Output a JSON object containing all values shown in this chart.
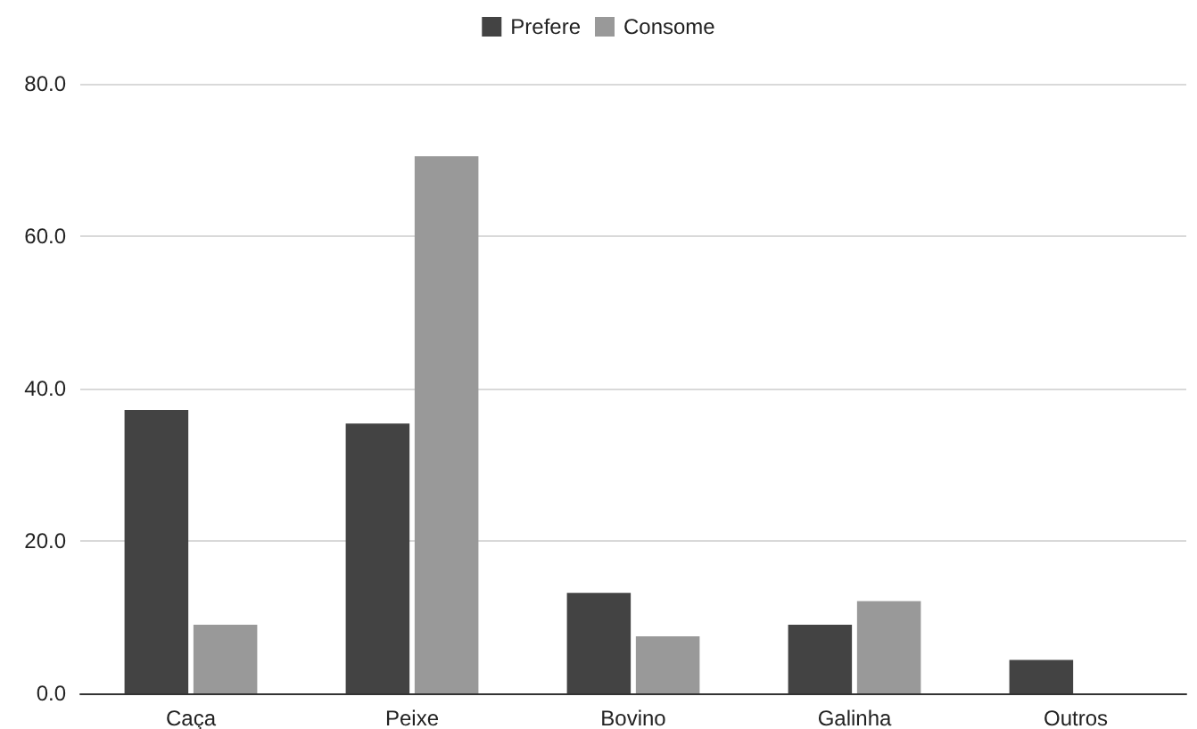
{
  "chart_data": {
    "type": "bar",
    "categories": [
      "Caça",
      "Peixe",
      "Bovino",
      "Galinha",
      "Outros"
    ],
    "series": [
      {
        "name": "Prefere",
        "color": "#434343",
        "values": [
          37.2,
          35.4,
          13.2,
          9.0,
          4.4
        ]
      },
      {
        "name": "Consome",
        "color": "#999999",
        "values": [
          9.0,
          70.5,
          7.5,
          12.1,
          0
        ]
      }
    ],
    "ylim": [
      0,
      80
    ],
    "yticks": [
      {
        "value": 0,
        "label": "0.0"
      },
      {
        "value": 20,
        "label": "20.0"
      },
      {
        "value": 40,
        "label": "40.0"
      },
      {
        "value": 60,
        "label": "60.0"
      },
      {
        "value": 80,
        "label": "80.0"
      }
    ],
    "grid": "y",
    "legend": "top"
  }
}
